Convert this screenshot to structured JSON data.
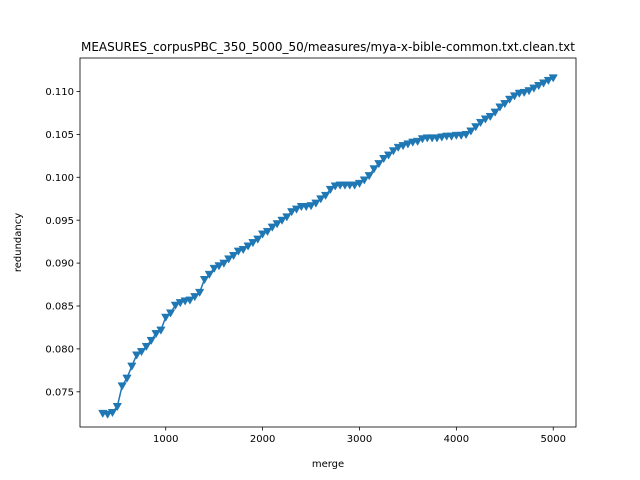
{
  "chart_data": {
    "type": "line",
    "title": "MEASURES_corpusPBC_350_5000_50/measures/mya-x-bible-common.txt.clean.txt",
    "xlabel": "merge",
    "ylabel": "redundancy",
    "xlim": [
      115,
      5235
    ],
    "ylim": [
      0.0709,
      0.1139
    ],
    "xticks": [
      1000,
      2000,
      3000,
      4000,
      5000
    ],
    "xtick_labels": [
      "1000",
      "2000",
      "3000",
      "4000",
      "5000"
    ],
    "yticks": [
      0.075,
      0.08,
      0.085,
      0.09,
      0.095,
      0.1,
      0.105,
      0.11
    ],
    "ytick_labels": [
      "0.075",
      "0.080",
      "0.085",
      "0.090",
      "0.095",
      "0.100",
      "0.105",
      "0.110"
    ],
    "grid": false,
    "marker": "triangle-down",
    "series_color": "#1f77b4",
    "series": [
      {
        "x": [
          350,
          400,
          450,
          500,
          550,
          600,
          650,
          700,
          750,
          800,
          850,
          900,
          950,
          1000,
          1050,
          1100,
          1150,
          1200,
          1250,
          1300,
          1350,
          1400,
          1450,
          1500,
          1550,
          1600,
          1650,
          1700,
          1750,
          1800,
          1850,
          1900,
          1950,
          2000,
          2050,
          2100,
          2150,
          2200,
          2250,
          2300,
          2350,
          2400,
          2450,
          2500,
          2550,
          2600,
          2650,
          2700,
          2750,
          2800,
          2850,
          2900,
          2950,
          3000,
          3050,
          3100,
          3150,
          3200,
          3250,
          3300,
          3350,
          3400,
          3450,
          3500,
          3550,
          3600,
          3650,
          3700,
          3750,
          3800,
          3850,
          3900,
          3950,
          4000,
          4050,
          4100,
          4150,
          4200,
          4250,
          4300,
          4350,
          4400,
          4450,
          4500,
          4550,
          4600,
          4650,
          4700,
          4750,
          4800,
          4850,
          4900,
          4950,
          5000
        ],
        "y": [
          0.0725,
          0.0724,
          0.0726,
          0.0733,
          0.0757,
          0.0766,
          0.078,
          0.0793,
          0.0797,
          0.0803,
          0.081,
          0.0818,
          0.0822,
          0.0837,
          0.0842,
          0.0851,
          0.0854,
          0.0856,
          0.0857,
          0.0861,
          0.0866,
          0.0881,
          0.0887,
          0.0894,
          0.0897,
          0.09,
          0.0905,
          0.0909,
          0.0914,
          0.0916,
          0.092,
          0.0924,
          0.0928,
          0.0934,
          0.0937,
          0.0942,
          0.0946,
          0.095,
          0.0954,
          0.096,
          0.0963,
          0.0966,
          0.0966,
          0.0967,
          0.097,
          0.0975,
          0.0979,
          0.0986,
          0.099,
          0.0991,
          0.0991,
          0.0991,
          0.0991,
          0.0993,
          0.0997,
          0.1002,
          0.101,
          0.1016,
          0.1022,
          0.1026,
          0.1031,
          0.1035,
          0.1037,
          0.1039,
          0.1041,
          0.1042,
          0.1045,
          0.1046,
          0.1046,
          0.1046,
          0.1047,
          0.1048,
          0.1048,
          0.1049,
          0.1049,
          0.105,
          0.1054,
          0.1059,
          0.1064,
          0.1068,
          0.1071,
          0.1076,
          0.1082,
          0.1086,
          0.1091,
          0.1095,
          0.1098,
          0.1099,
          0.1101,
          0.1104,
          0.1107,
          0.111,
          0.1113,
          0.1116
        ]
      }
    ]
  }
}
